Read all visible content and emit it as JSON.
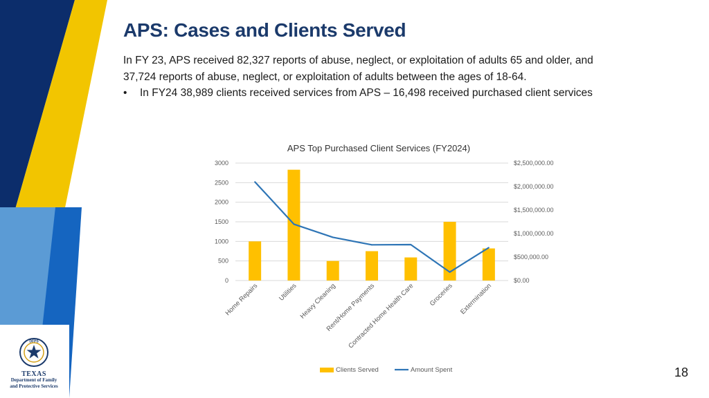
{
  "slide": {
    "title": "APS: Cases and Clients Served",
    "paragraph": "In FY 23, APS received 82,327 reports of abuse, neglect, or exploitation of adults 65 and older, and 37,724 reports of abuse, neglect, or exploitation of adults between the ages of 18-64.",
    "bullet_symbol": "•",
    "bullet": "In FY24 38,989 clients received services from APS – 16,498 received purchased client services",
    "page_number": "18"
  },
  "logo": {
    "seal_text": "DFPS",
    "line1": "TEXAS",
    "line2": "Department of Family",
    "line3": "and Protective Services"
  },
  "colors": {
    "navy": "#0c2d6b",
    "blue": "#1565c0",
    "light_blue": "#5b9bd5",
    "gold": "#f2c500",
    "bar": "#ffc000",
    "line": "#2e75b6",
    "title": "#1b3a6b"
  },
  "chart_data": {
    "type": "bar",
    "title": "APS Top Purchased Client Services (FY2024)",
    "categories": [
      "Home Repairs",
      "Utilities",
      "Heavy Cleaning",
      "Rent/Home Payments",
      "Contracted Home Health Care",
      "Groceries",
      "Extermination"
    ],
    "series": [
      {
        "name": "Clients Served",
        "type": "bar",
        "axis": "left",
        "values": [
          1000,
          2830,
          500,
          750,
          590,
          1500,
          820
        ]
      },
      {
        "name": "Amount Spent",
        "type": "line",
        "axis": "right",
        "values": [
          2100000,
          1200000,
          920000,
          760000,
          765000,
          180000,
          700000
        ]
      }
    ],
    "y_left": {
      "min": 0,
      "max": 3000,
      "ticks": [
        "0",
        "500",
        "1000",
        "1500",
        "2000",
        "2500",
        "3000"
      ]
    },
    "y_right": {
      "min": 0,
      "max": 2500000,
      "ticks": [
        "$0.00",
        "$500,000.00",
        "$1,000,000.00",
        "$1,500,000.00",
        "$2,000,000.00",
        "$2,500,000.00"
      ]
    },
    "legend": [
      "Clients Served",
      "Amount Spent"
    ],
    "legend_position": "bottom",
    "grid": true
  }
}
